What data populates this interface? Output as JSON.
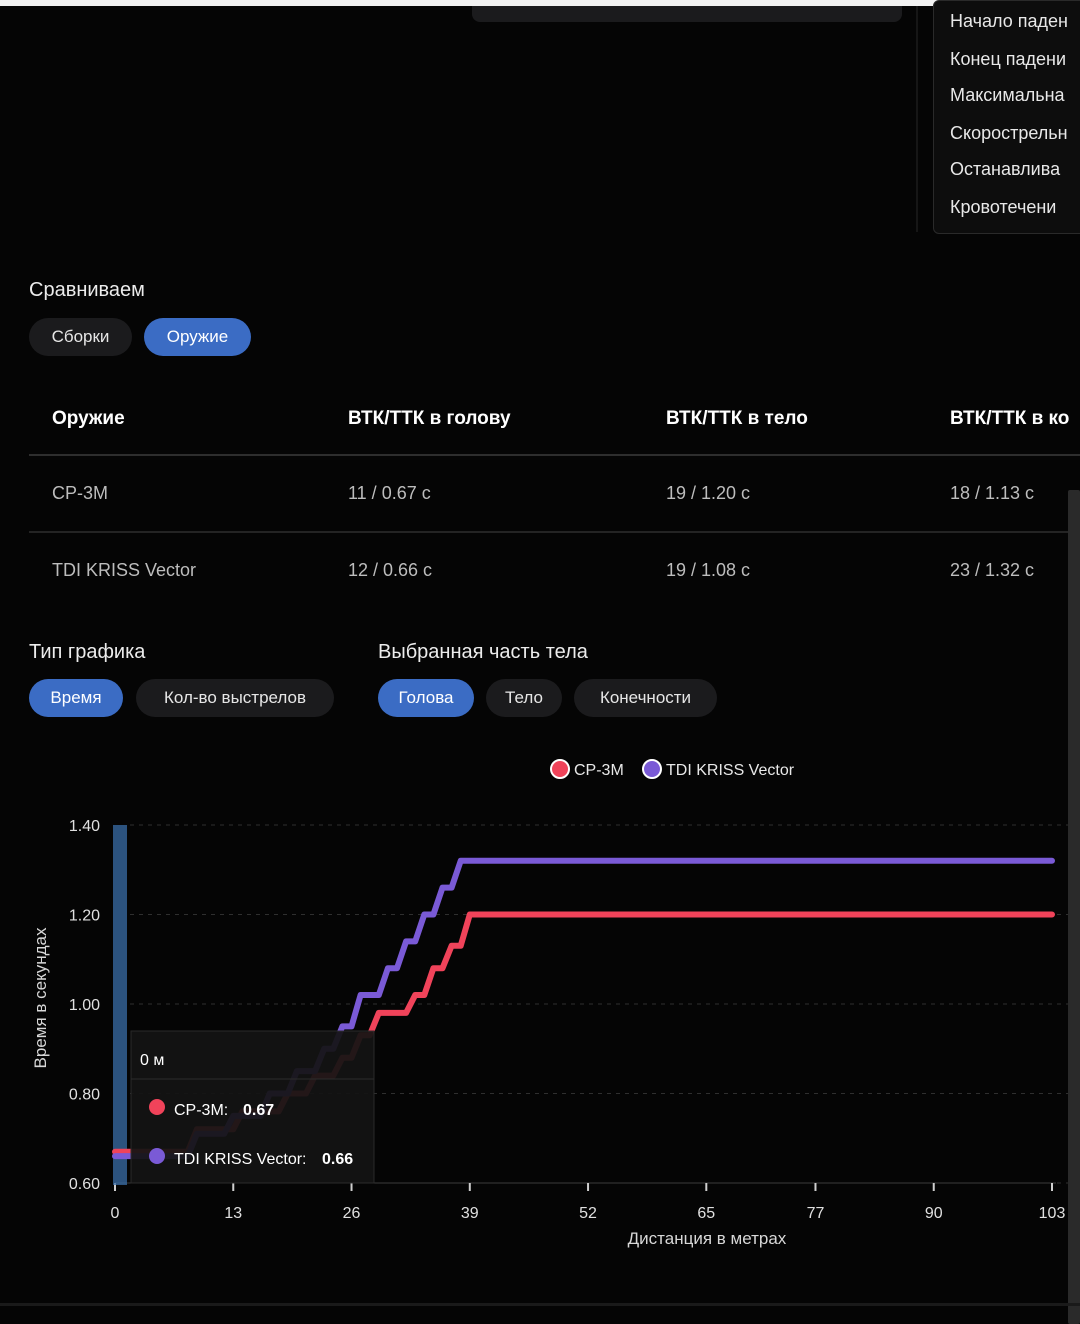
{
  "dropdown": {
    "options": [
      "Начало паден",
      "Конец падени",
      "Максимальна",
      "Скорострельн",
      "Останавлива",
      "Кровотечени"
    ]
  },
  "compare": {
    "title": "Сравниваем",
    "chips": [
      {
        "label": "Сборки",
        "active": false
      },
      {
        "label": "Оружие",
        "active": true
      }
    ]
  },
  "table": {
    "headers": [
      "Оружие",
      "ВТК/ТТК в голову",
      "ВТК/ТТК в тело",
      "ВТК/ТТК в ко"
    ],
    "rows": [
      [
        "СР-3М",
        "11 / 0.67 с",
        "19 / 1.20 с",
        "18 / 1.13 с"
      ],
      [
        "TDI KRISS Vector",
        "12 / 0.66 с",
        "19 / 1.08 с",
        "23 / 1.32 с"
      ]
    ]
  },
  "chart_type": {
    "title": "Тип графика",
    "chips": [
      {
        "label": "Время",
        "active": true
      },
      {
        "label": "Кол-во выстрелов",
        "active": false
      }
    ]
  },
  "body_part": {
    "title": "Выбранная часть тела",
    "chips": [
      {
        "label": "Голова",
        "active": true
      },
      {
        "label": "Тело",
        "active": false
      },
      {
        "label": "Конечности",
        "active": false
      }
    ]
  },
  "tooltip": {
    "title": "0 м",
    "items": [
      {
        "name": "СР-3М:",
        "value": "0.67",
        "color": "#f0435a"
      },
      {
        "name": "TDI KRISS Vector:",
        "value": "0.66",
        "color": "#7a5ad6"
      }
    ]
  },
  "chart_data": {
    "type": "line",
    "step": true,
    "xlabel": "Дистанция в метрах",
    "ylabel": "Время в секундах",
    "xlim": [
      0,
      103
    ],
    "ylim": [
      0.6,
      1.4
    ],
    "xticks": [
      "0",
      "13",
      "26",
      "39",
      "52",
      "65",
      "77",
      "90",
      "103"
    ],
    "yticks": [
      "1.40",
      "1.20",
      "1.00",
      "0.80",
      "0.60"
    ],
    "grid": true,
    "legend": "top-center",
    "series": [
      {
        "name": "СР-3М",
        "color": "#f0435a",
        "points": [
          [
            0,
            0.67
          ],
          [
            8,
            0.67
          ],
          [
            9,
            0.72
          ],
          [
            13,
            0.72
          ],
          [
            14,
            0.76
          ],
          [
            18,
            0.76
          ],
          [
            19,
            0.8
          ],
          [
            21,
            0.8
          ],
          [
            22,
            0.84
          ],
          [
            24,
            0.84
          ],
          [
            25,
            0.88
          ],
          [
            26,
            0.88
          ],
          [
            27,
            0.93
          ],
          [
            28,
            0.93
          ],
          [
            29,
            0.98
          ],
          [
            32,
            0.98
          ],
          [
            33,
            1.02
          ],
          [
            34,
            1.02
          ],
          [
            35,
            1.08
          ],
          [
            36,
            1.08
          ],
          [
            37,
            1.13
          ],
          [
            38,
            1.13
          ],
          [
            39,
            1.2
          ],
          [
            103,
            1.2
          ]
        ]
      },
      {
        "name": "TDI KRISS Vector",
        "color": "#7a5ad6",
        "points": [
          [
            0,
            0.66
          ],
          [
            8,
            0.66
          ],
          [
            9,
            0.71
          ],
          [
            12,
            0.71
          ],
          [
            13,
            0.75
          ],
          [
            16,
            0.75
          ],
          [
            17,
            0.8
          ],
          [
            19,
            0.8
          ],
          [
            20,
            0.85
          ],
          [
            22,
            0.85
          ],
          [
            23,
            0.9
          ],
          [
            24,
            0.9
          ],
          [
            25,
            0.95
          ],
          [
            26,
            0.95
          ],
          [
            27,
            1.02
          ],
          [
            29,
            1.02
          ],
          [
            30,
            1.08
          ],
          [
            31,
            1.08
          ],
          [
            32,
            1.14
          ],
          [
            33,
            1.14
          ],
          [
            34,
            1.2
          ],
          [
            35,
            1.2
          ],
          [
            36,
            1.26
          ],
          [
            37,
            1.26
          ],
          [
            38,
            1.32
          ],
          [
            103,
            1.32
          ]
        ]
      }
    ]
  }
}
